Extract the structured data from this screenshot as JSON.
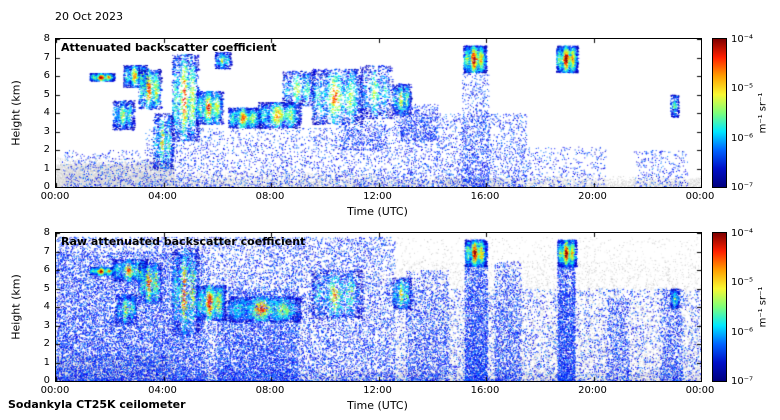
{
  "header": {
    "date": "20 Oct 2023"
  },
  "footer": {
    "instrument": "Sodankyla CT25K ceilometer"
  },
  "chart_data": [
    {
      "type": "heatmap",
      "title": "Attenuated backscatter coefficient",
      "xlabel": "Time (UTC)",
      "ylabel": "Height (km)",
      "x_ticks": [
        "00:00",
        "04:00",
        "08:00",
        "12:00",
        "16:00",
        "20:00",
        "00:00"
      ],
      "xlim_hours": [
        0,
        24
      ],
      "y_ticks": [
        0,
        1,
        2,
        3,
        4,
        5,
        6,
        7,
        8
      ],
      "ylim_km": [
        0,
        8
      ],
      "grid": false,
      "legend": "colorbar-right",
      "colorbar": {
        "ticks": [
          "10⁻⁴",
          "10⁻⁵",
          "10⁻⁶",
          "10⁻⁷"
        ],
        "unit": "m⁻¹ sr⁻¹",
        "scale": "log",
        "range": [
          1e-07,
          0.0001
        ],
        "colors": [
          "#7f0000",
          "#ff2000",
          "#ff9e00",
          "#f8f832",
          "#7dff7a",
          "#00e8ff",
          "#0064ff",
          "#0010c8",
          "#00007f"
        ]
      },
      "seed": 7,
      "clouds_format": "[start_hour, end_hour, base_km, top_km, intensity_0to1, sample_count]",
      "clouds": [
        [
          1.25,
          2.15,
          5.75,
          6.15,
          0.97,
          900
        ],
        [
          2.1,
          2.9,
          3.1,
          4.7,
          0.55,
          600
        ],
        [
          2.5,
          3.4,
          5.4,
          6.6,
          0.7,
          650
        ],
        [
          3.05,
          3.9,
          4.2,
          6.4,
          0.8,
          750
        ],
        [
          3.6,
          4.35,
          1.0,
          4.0,
          0.6,
          650
        ],
        [
          4.3,
          5.3,
          2.5,
          7.2,
          0.78,
          1200
        ],
        [
          5.2,
          6.2,
          3.4,
          5.2,
          0.8,
          900
        ],
        [
          5.9,
          6.5,
          6.4,
          7.3,
          0.55,
          300
        ],
        [
          6.4,
          7.6,
          3.2,
          4.3,
          0.75,
          900
        ],
        [
          7.5,
          9.1,
          3.2,
          4.6,
          0.7,
          1000
        ],
        [
          8.4,
          9.6,
          4.4,
          6.3,
          0.55,
          550
        ],
        [
          9.5,
          11.4,
          3.4,
          6.4,
          0.68,
          1300
        ],
        [
          11.3,
          12.5,
          3.7,
          6.6,
          0.5,
          650
        ],
        [
          12.5,
          13.2,
          3.9,
          5.6,
          0.62,
          550
        ],
        [
          15.15,
          16.0,
          6.2,
          7.65,
          0.95,
          1200
        ],
        [
          18.6,
          19.4,
          6.2,
          7.65,
          0.95,
          1100
        ],
        [
          22.85,
          23.15,
          3.8,
          5.0,
          0.45,
          220
        ]
      ],
      "noise_format": "[start_hour, end_hour, base_km, top_km, sample_count]",
      "noise": {
        "gray": [
          [
            0,
            4.4,
            0,
            1.25,
            7000
          ],
          [
            0,
            4.4,
            0,
            1.6,
            1500
          ],
          [
            0,
            24,
            0,
            0.45,
            3500
          ],
          [
            4.4,
            12,
            0,
            0.8,
            1500
          ],
          [
            14.4,
            16.6,
            0,
            0.5,
            900
          ],
          [
            12,
            24,
            0,
            0.6,
            900
          ]
        ],
        "blue": [
          [
            3.3,
            12.5,
            0,
            3.2,
            2500
          ],
          [
            12.5,
            17.5,
            0,
            4.0,
            2200
          ],
          [
            0.2,
            3.3,
            0,
            2.0,
            500
          ],
          [
            15.1,
            16.1,
            0,
            6.2,
            700
          ],
          [
            17.5,
            20.5,
            0,
            2.2,
            400
          ],
          [
            21.5,
            23.5,
            0,
            2.0,
            300
          ],
          [
            12.8,
            14.2,
            2.5,
            4.5,
            500
          ],
          [
            10.5,
            12.3,
            2.0,
            3.6,
            400
          ]
        ]
      }
    },
    {
      "type": "heatmap",
      "title": "Raw attenuated backscatter coefficient",
      "xlabel": "Time (UTC)",
      "ylabel": "Height (km)",
      "x_ticks": [
        "00:00",
        "04:00",
        "08:00",
        "12:00",
        "16:00",
        "20:00",
        "00:00"
      ],
      "xlim_hours": [
        0,
        24
      ],
      "y_ticks": [
        0,
        1,
        2,
        3,
        4,
        5,
        6,
        7,
        8
      ],
      "ylim_km": [
        0,
        8
      ],
      "grid": false,
      "legend": "colorbar-right",
      "colorbar": {
        "ticks": [
          "10⁻⁴",
          "10⁻⁵",
          "10⁻⁶",
          "10⁻⁷"
        ],
        "unit": "m⁻¹ sr⁻¹",
        "scale": "log",
        "range": [
          1e-07,
          0.0001
        ],
        "colors": [
          "#7f0000",
          "#ff2000",
          "#ff9e00",
          "#f8f832",
          "#7dff7a",
          "#00e8ff",
          "#0064ff",
          "#0010c8",
          "#00007f"
        ]
      },
      "seed": 13,
      "clouds_format": "[start_hour, end_hour, base_km, top_km, intensity_0to1, sample_count]",
      "clouds": [
        [
          1.25,
          2.15,
          5.75,
          6.15,
          0.95,
          800
        ],
        [
          2.1,
          3.4,
          5.4,
          6.6,
          0.7,
          700
        ],
        [
          2.2,
          3.0,
          3.1,
          4.7,
          0.55,
          450
        ],
        [
          3.05,
          3.9,
          4.2,
          6.4,
          0.78,
          650
        ],
        [
          4.3,
          5.3,
          2.5,
          7.2,
          0.75,
          1000
        ],
        [
          5.2,
          6.3,
          3.3,
          5.2,
          0.85,
          950
        ],
        [
          6.4,
          9.1,
          3.2,
          4.6,
          0.72,
          1500
        ],
        [
          9.5,
          11.4,
          3.4,
          6.0,
          0.6,
          900
        ],
        [
          12.5,
          13.2,
          3.9,
          5.6,
          0.6,
          450
        ],
        [
          15.2,
          16.0,
          6.2,
          7.65,
          0.95,
          1100
        ],
        [
          18.65,
          19.35,
          6.2,
          7.65,
          0.95,
          1000
        ],
        [
          22.85,
          23.15,
          3.9,
          5.0,
          0.5,
          220
        ]
      ],
      "noise_format": "[start_hour, end_hour, base_km, top_km, sample_count]",
      "noise": {
        "gray": [
          [
            0,
            24,
            0,
            7.8,
            9000
          ],
          [
            12.6,
            24,
            0,
            6.5,
            6000
          ],
          [
            0,
            4.4,
            0,
            1.4,
            5000
          ],
          [
            0,
            24,
            0,
            0.5,
            3500
          ]
        ],
        "blue": [
          [
            0,
            12.6,
            0,
            7.8,
            16000
          ],
          [
            0,
            5.5,
            0,
            7.0,
            6000
          ],
          [
            12.6,
            24,
            0,
            5.0,
            5000
          ],
          [
            15.2,
            16.05,
            0,
            7.6,
            2500
          ],
          [
            18.65,
            19.3,
            0,
            7.6,
            2200
          ],
          [
            13.0,
            14.6,
            0,
            6.0,
            1500
          ],
          [
            16.3,
            17.3,
            0,
            6.5,
            1200
          ],
          [
            20.5,
            21.3,
            0,
            4.5,
            600
          ],
          [
            22.5,
            23.3,
            0,
            5.0,
            700
          ],
          [
            6,
            9,
            0,
            5.0,
            3000
          ]
        ]
      }
    }
  ]
}
